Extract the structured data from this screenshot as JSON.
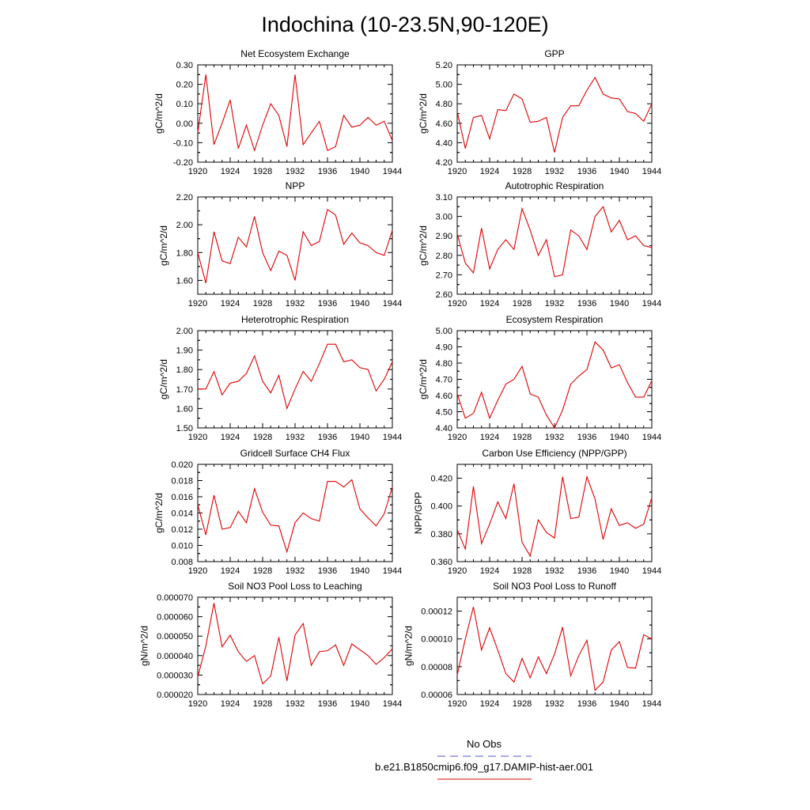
{
  "figure": {
    "title": "Indochina (10-23.5N,90-120E)"
  },
  "legend": {
    "entries": [
      {
        "label": "No Obs",
        "color": "#5555cc",
        "style": "dashed"
      },
      {
        "label": "b.e21.B1850cmip6.f09_g17.DAMIP-hist-aer.001",
        "color": "#e00000",
        "style": "solid"
      }
    ]
  },
  "chart_data": [
    {
      "type": "line",
      "title": "Net Ecosystem Exchange",
      "ylabel": "gC/m^2/d",
      "xlim": [
        1920,
        1944
      ],
      "ylim": [
        -0.2,
        0.3
      ],
      "xticks": [
        "1920",
        "1924",
        "1928",
        "1932",
        "1936",
        "1940",
        "1944"
      ],
      "yticks": [
        "-0.20",
        "-0.10",
        "0.00",
        "0.10",
        "0.20",
        "0.30"
      ],
      "x": [
        1920,
        1921,
        1922,
        1923,
        1924,
        1925,
        1926,
        1927,
        1928,
        1929,
        1930,
        1931,
        1932,
        1933,
        1934,
        1935,
        1936,
        1937,
        1938,
        1939,
        1940,
        1941,
        1942,
        1943,
        1944
      ],
      "series": [
        {
          "color": "#e00000",
          "values": [
            -0.05,
            0.25,
            -0.11,
            0.0,
            0.12,
            -0.13,
            -0.01,
            -0.14,
            -0.01,
            0.1,
            0.04,
            -0.12,
            0.25,
            -0.11,
            -0.05,
            0.01,
            -0.14,
            -0.12,
            0.04,
            -0.02,
            -0.01,
            0.03,
            -0.01,
            0.01,
            -0.09
          ]
        }
      ]
    },
    {
      "type": "line",
      "title": "GPP",
      "ylabel": "gC/m^2/d",
      "xlim": [
        1920,
        1944
      ],
      "ylim": [
        4.2,
        5.2
      ],
      "xticks": [
        "1920",
        "1924",
        "1928",
        "1932",
        "1936",
        "1940",
        "1944"
      ],
      "yticks": [
        "4.20",
        "4.40",
        "4.60",
        "4.80",
        "5.00",
        "5.20"
      ],
      "x": [
        1920,
        1921,
        1922,
        1923,
        1924,
        1925,
        1926,
        1927,
        1928,
        1929,
        1930,
        1931,
        1932,
        1933,
        1934,
        1935,
        1936,
        1937,
        1938,
        1939,
        1940,
        1941,
        1942,
        1943,
        1944
      ],
      "series": [
        {
          "color": "#e00000",
          "values": [
            4.72,
            4.34,
            4.66,
            4.68,
            4.44,
            4.74,
            4.73,
            4.9,
            4.85,
            4.61,
            4.62,
            4.66,
            4.3,
            4.66,
            4.78,
            4.78,
            4.94,
            5.07,
            4.9,
            4.86,
            4.85,
            4.72,
            4.7,
            4.62,
            4.8
          ]
        }
      ]
    },
    {
      "type": "line",
      "title": "NPP",
      "ylabel": "gC/m^2/d",
      "xlim": [
        1920,
        1944
      ],
      "ylim": [
        1.5,
        2.2
      ],
      "xticks": [
        "1920",
        "1924",
        "1928",
        "1932",
        "1936",
        "1940",
        "1944"
      ],
      "yticks": [
        "1.60",
        "1.80",
        "2.00",
        "2.20"
      ],
      "x": [
        1920,
        1921,
        1922,
        1923,
        1924,
        1925,
        1926,
        1927,
        1928,
        1929,
        1930,
        1931,
        1932,
        1933,
        1934,
        1935,
        1936,
        1937,
        1938,
        1939,
        1940,
        1941,
        1942,
        1943,
        1944
      ],
      "series": [
        {
          "color": "#e00000",
          "values": [
            1.8,
            1.58,
            1.95,
            1.74,
            1.72,
            1.91,
            1.84,
            2.06,
            1.8,
            1.67,
            1.81,
            1.78,
            1.6,
            1.95,
            1.85,
            1.88,
            2.11,
            2.07,
            1.86,
            1.94,
            1.87,
            1.85,
            1.8,
            1.78,
            1.96
          ]
        }
      ]
    },
    {
      "type": "line",
      "title": "Autotrophic Respiration",
      "ylabel": "gC/m^2/d",
      "xlim": [
        1920,
        1944
      ],
      "ylim": [
        2.6,
        3.1
      ],
      "xticks": [
        "1920",
        "1924",
        "1928",
        "1932",
        "1936",
        "1940",
        "1944"
      ],
      "yticks": [
        "2.60",
        "2.70",
        "2.80",
        "2.90",
        "3.00",
        "3.10"
      ],
      "x": [
        1920,
        1921,
        1922,
        1923,
        1924,
        1925,
        1926,
        1927,
        1928,
        1929,
        1930,
        1931,
        1932,
        1933,
        1934,
        1935,
        1936,
        1937,
        1938,
        1939,
        1940,
        1941,
        1942,
        1943,
        1944
      ],
      "series": [
        {
          "color": "#e00000",
          "values": [
            2.91,
            2.76,
            2.71,
            2.94,
            2.73,
            2.83,
            2.88,
            2.83,
            3.04,
            2.93,
            2.8,
            2.88,
            2.69,
            2.7,
            2.93,
            2.9,
            2.83,
            3.0,
            3.05,
            2.92,
            2.98,
            2.88,
            2.9,
            2.85,
            2.84
          ]
        }
      ]
    },
    {
      "type": "line",
      "title": "Heterotrophic Respiration",
      "ylabel": "gC/m^2/d",
      "xlim": [
        1920,
        1944
      ],
      "ylim": [
        1.5,
        2.0
      ],
      "xticks": [
        "1920",
        "1924",
        "1928",
        "1932",
        "1936",
        "1940",
        "1944"
      ],
      "yticks": [
        "1.50",
        "1.60",
        "1.70",
        "1.80",
        "1.90",
        "2.00"
      ],
      "x": [
        1920,
        1921,
        1922,
        1923,
        1924,
        1925,
        1926,
        1927,
        1928,
        1929,
        1930,
        1931,
        1932,
        1933,
        1934,
        1935,
        1936,
        1937,
        1938,
        1939,
        1940,
        1941,
        1942,
        1943,
        1944
      ],
      "series": [
        {
          "color": "#e00000",
          "values": [
            1.7,
            1.7,
            1.79,
            1.67,
            1.73,
            1.74,
            1.78,
            1.87,
            1.74,
            1.68,
            1.77,
            1.6,
            1.7,
            1.79,
            1.74,
            1.83,
            1.93,
            1.93,
            1.84,
            1.85,
            1.81,
            1.8,
            1.69,
            1.75,
            1.84
          ]
        }
      ]
    },
    {
      "type": "line",
      "title": "Ecosystem Respiration",
      "ylabel": "gC/m^2/d",
      "xlim": [
        1920,
        1944
      ],
      "ylim": [
        4.4,
        5.0
      ],
      "xticks": [
        "1920",
        "1924",
        "1928",
        "1932",
        "1936",
        "1940",
        "1944"
      ],
      "yticks": [
        "4.40",
        "4.50",
        "4.60",
        "4.70",
        "4.80",
        "4.90",
        "5.00"
      ],
      "x": [
        1920,
        1921,
        1922,
        1923,
        1924,
        1925,
        1926,
        1927,
        1928,
        1929,
        1930,
        1931,
        1932,
        1933,
        1934,
        1935,
        1936,
        1937,
        1938,
        1939,
        1940,
        1941,
        1942,
        1943,
        1944
      ],
      "series": [
        {
          "color": "#e00000",
          "values": [
            4.61,
            4.46,
            4.49,
            4.62,
            4.46,
            4.57,
            4.67,
            4.7,
            4.78,
            4.61,
            4.59,
            4.48,
            4.4,
            4.51,
            4.67,
            4.72,
            4.76,
            4.93,
            4.88,
            4.77,
            4.79,
            4.68,
            4.59,
            4.59,
            4.69
          ]
        }
      ]
    },
    {
      "type": "line",
      "title": "Gridcell Surface CH4 Flux",
      "ylabel": "gC/m^2/d",
      "xlim": [
        1920,
        1944
      ],
      "ylim": [
        0.008,
        0.02
      ],
      "xticks": [
        "1920",
        "1924",
        "1928",
        "1932",
        "1936",
        "1940",
        "1944"
      ],
      "yticks": [
        "0.008",
        "0.010",
        "0.012",
        "0.014",
        "0.016",
        "0.018",
        "0.020"
      ],
      "x": [
        1920,
        1921,
        1922,
        1923,
        1924,
        1925,
        1926,
        1927,
        1928,
        1929,
        1930,
        1931,
        1932,
        1933,
        1934,
        1935,
        1936,
        1937,
        1938,
        1939,
        1940,
        1941,
        1942,
        1943,
        1944
      ],
      "series": [
        {
          "color": "#e00000",
          "values": [
            0.015,
            0.0113,
            0.0162,
            0.012,
            0.0122,
            0.0142,
            0.0128,
            0.017,
            0.0141,
            0.0125,
            0.0124,
            0.0092,
            0.0128,
            0.014,
            0.0133,
            0.013,
            0.0179,
            0.0179,
            0.0172,
            0.0181,
            0.0145,
            0.0134,
            0.0124,
            0.0139,
            0.0172
          ]
        }
      ]
    },
    {
      "type": "line",
      "title": "Carbon Use Efficiency (NPP/GPP)",
      "ylabel": "NPP/GPP",
      "xlim": [
        1920,
        1944
      ],
      "ylim": [
        0.36,
        0.43
      ],
      "xticks": [
        "1920",
        "1924",
        "1928",
        "1932",
        "1936",
        "1940",
        "1944"
      ],
      "yticks": [
        "0.360",
        "0.380",
        "0.400",
        "0.420"
      ],
      "x": [
        1920,
        1921,
        1922,
        1923,
        1924,
        1925,
        1926,
        1927,
        1928,
        1929,
        1930,
        1931,
        1932,
        1933,
        1934,
        1935,
        1936,
        1937,
        1938,
        1939,
        1940,
        1941,
        1942,
        1943,
        1944
      ],
      "series": [
        {
          "color": "#e00000",
          "values": [
            0.383,
            0.369,
            0.414,
            0.373,
            0.387,
            0.403,
            0.391,
            0.416,
            0.374,
            0.364,
            0.39,
            0.381,
            0.377,
            0.421,
            0.391,
            0.392,
            0.421,
            0.405,
            0.376,
            0.398,
            0.386,
            0.388,
            0.384,
            0.387,
            0.406
          ]
        }
      ]
    },
    {
      "type": "line",
      "title": "Soil NO3 Pool Loss to Leaching",
      "ylabel": "gN/m^2/d",
      "xlim": [
        1920,
        1944
      ],
      "ylim": [
        2e-05,
        7e-05
      ],
      "xticks": [
        "1920",
        "1924",
        "1928",
        "1932",
        "1936",
        "1940",
        "1944"
      ],
      "yticks": [
        "0.000020",
        "0.000030",
        "0.000040",
        "0.000050",
        "0.000060",
        "0.000070"
      ],
      "x": [
        1920,
        1921,
        1922,
        1923,
        1924,
        1925,
        1926,
        1927,
        1928,
        1929,
        1930,
        1931,
        1932,
        1933,
        1934,
        1935,
        1936,
        1937,
        1938,
        1939,
        1940,
        1941,
        1942,
        1943,
        1944
      ],
      "series": [
        {
          "color": "#e00000",
          "values": [
            2.9e-05,
            4.5e-05,
            6.7e-05,
            4.45e-05,
            5.05e-05,
            4.2e-05,
            3.7e-05,
            4e-05,
            2.55e-05,
            2.95e-05,
            4.95e-05,
            2.7e-05,
            5.05e-05,
            5.65e-05,
            3.5e-05,
            4.2e-05,
            4.25e-05,
            4.55e-05,
            3.5e-05,
            4.6e-05,
            4.3e-05,
            4e-05,
            3.55e-05,
            3.9e-05,
            4.35e-05
          ]
        }
      ]
    },
    {
      "type": "line",
      "title": "Soil NO3 Pool Loss to Runoff",
      "ylabel": "gN/m^2/d",
      "xlim": [
        1920,
        1944
      ],
      "ylim": [
        6e-05,
        0.00013
      ],
      "xticks": [
        "1920",
        "1924",
        "1928",
        "1932",
        "1936",
        "1940",
        "1944"
      ],
      "yticks": [
        "0.00006",
        "0.00008",
        "0.00010",
        "0.00012"
      ],
      "x": [
        1920,
        1921,
        1922,
        1923,
        1924,
        1925,
        1926,
        1927,
        1928,
        1929,
        1930,
        1931,
        1932,
        1933,
        1934,
        1935,
        1936,
        1937,
        1938,
        1939,
        1940,
        1941,
        1942,
        1943,
        1944
      ],
      "series": [
        {
          "color": "#e00000",
          "values": [
            7.4e-05,
            0.0001,
            0.000123,
            9.2e-05,
            0.000108,
            9.2e-05,
            7.5e-05,
            6.9e-05,
            8.6e-05,
            7.2e-05,
            8.7e-05,
            7.5e-05,
            8.9e-05,
            0.0001085,
            7.35e-05,
            8.8e-05,
            9.9e-05,
            6.3e-05,
            6.9e-05,
            9.2e-05,
            9.8e-05,
            7.95e-05,
            7.9e-05,
            0.000103,
            0.0001
          ]
        }
      ]
    }
  ]
}
